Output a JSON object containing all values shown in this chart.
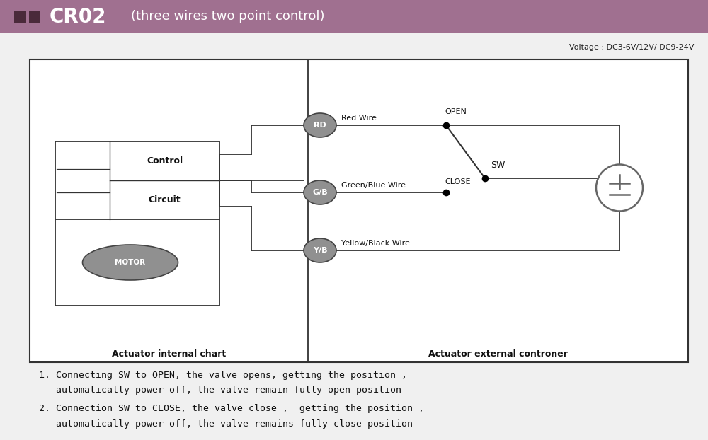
{
  "title_text": "CR02",
  "title_sub": "(three wires two point control)",
  "title_bg": "#a07090",
  "title_squares_color": "#4a2a3a",
  "voltage_text": "Voltage : DC3-6V/12V/ DC9-24V",
  "bg_color": "#f0f0f0",
  "diagram_bg": "#ffffff",
  "diagram_border": "#333333",
  "node_color": "#909090",
  "node_text_color": "#ffffff",
  "node_stroke": "#555555",
  "wire_color": "#333333",
  "label_color": "#111111",
  "divider_color": "#333333",
  "motor_color": "#909090",
  "pm_color": "#666666",
  "text1_line1": "1. Connecting SW to OPEN, the valve opens, getting the position ,",
  "text1_line2": "   automatically power off, the valve remain fully open position",
  "text2_line1": "2. Connection SW to CLOSE, the valve close ,  getting the position ,",
  "text2_line2": "   automatically power off, the valve remains fully close position",
  "label_internal": "Actuator internal chart",
  "label_external": "Actuator external controner",
  "node_rd": "RD",
  "node_gb": "G/B",
  "node_yb": "Y/B",
  "wire_rd": "Red Wire",
  "wire_gb": "Green/Blue Wire",
  "wire_yb": "Yellow/Black Wire",
  "open_label": "OPEN",
  "close_label": "CLOSE",
  "sw_label": "SW",
  "control_label1": "Control",
  "control_label2": "Circuit",
  "motor_label": "MOTOR"
}
